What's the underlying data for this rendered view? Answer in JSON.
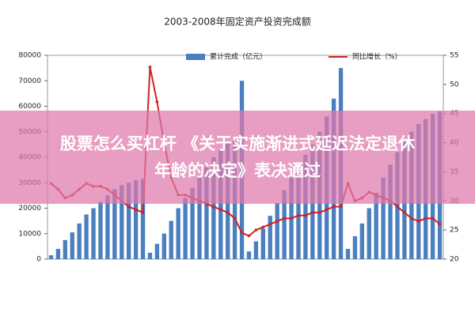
{
  "chart_data": {
    "type": "bar-line",
    "title": "2003-2008年固定资产投资完成额",
    "categories": [
      null,
      null,
      null,
      null,
      null,
      null,
      null,
      null,
      null,
      null,
      null,
      null,
      null,
      null,
      null,
      null,
      null,
      null,
      null,
      null,
      null,
      null,
      null,
      null,
      null,
      null,
      null,
      null,
      null,
      null,
      null,
      null,
      null,
      null,
      null,
      null,
      null,
      null,
      null,
      null,
      null,
      null,
      null,
      null,
      null,
      null,
      null,
      null,
      null,
      null,
      null,
      null,
      null,
      null,
      null,
      null
    ],
    "series": [
      {
        "name": "累计完成（亿元）",
        "type": "bar",
        "color": "#4a7fc0",
        "values": [
          1500,
          4000,
          7500,
          10500,
          14000,
          17500,
          20000,
          22500,
          25000,
          27500,
          29000,
          30000,
          31000,
          31500,
          2500,
          6000,
          10000,
          15000,
          20000,
          24000,
          28000,
          32000,
          36000,
          40000,
          43000,
          46000,
          48000,
          70000,
          3000,
          7000,
          12000,
          17000,
          22000,
          27000,
          32000,
          36000,
          41000,
          45000,
          50000,
          56000,
          63000,
          75000,
          4000,
          9000,
          14000,
          20000,
          26000,
          32000,
          37000,
          42000,
          46000,
          50000,
          53000,
          55000,
          57000,
          58000
        ]
      },
      {
        "name": "同比增长（%）",
        "type": "line",
        "axis": "y2",
        "color": "#d42020",
        "values": [
          33,
          32,
          30.5,
          31,
          32,
          33,
          32.5,
          32.5,
          32,
          31,
          30,
          29,
          28.5,
          28,
          53,
          47,
          40,
          34,
          31,
          31,
          30.5,
          30,
          29.5,
          29,
          28.5,
          28,
          27,
          24.5,
          24,
          25,
          25.5,
          26,
          26.5,
          27,
          27,
          27.5,
          27.5,
          28,
          28,
          28.5,
          29,
          29,
          33,
          30,
          30.5,
          31.5,
          31,
          30.5,
          30,
          29,
          28,
          27,
          26.5,
          27,
          27,
          26
        ]
      }
    ],
    "ylim": [
      0,
      80000
    ],
    "yticks": [
      0,
      10000,
      20000,
      30000,
      40000,
      50000,
      60000,
      70000,
      80000
    ],
    "y2lim": [
      20,
      55
    ],
    "y2ticks": [
      20,
      25,
      30,
      35,
      40,
      45,
      50,
      55
    ]
  },
  "banner": {
    "lines": [
      "股票怎么买杠杆 《关于实施渐进式延迟法定退休",
      "年龄的决定》表决通过"
    ]
  }
}
